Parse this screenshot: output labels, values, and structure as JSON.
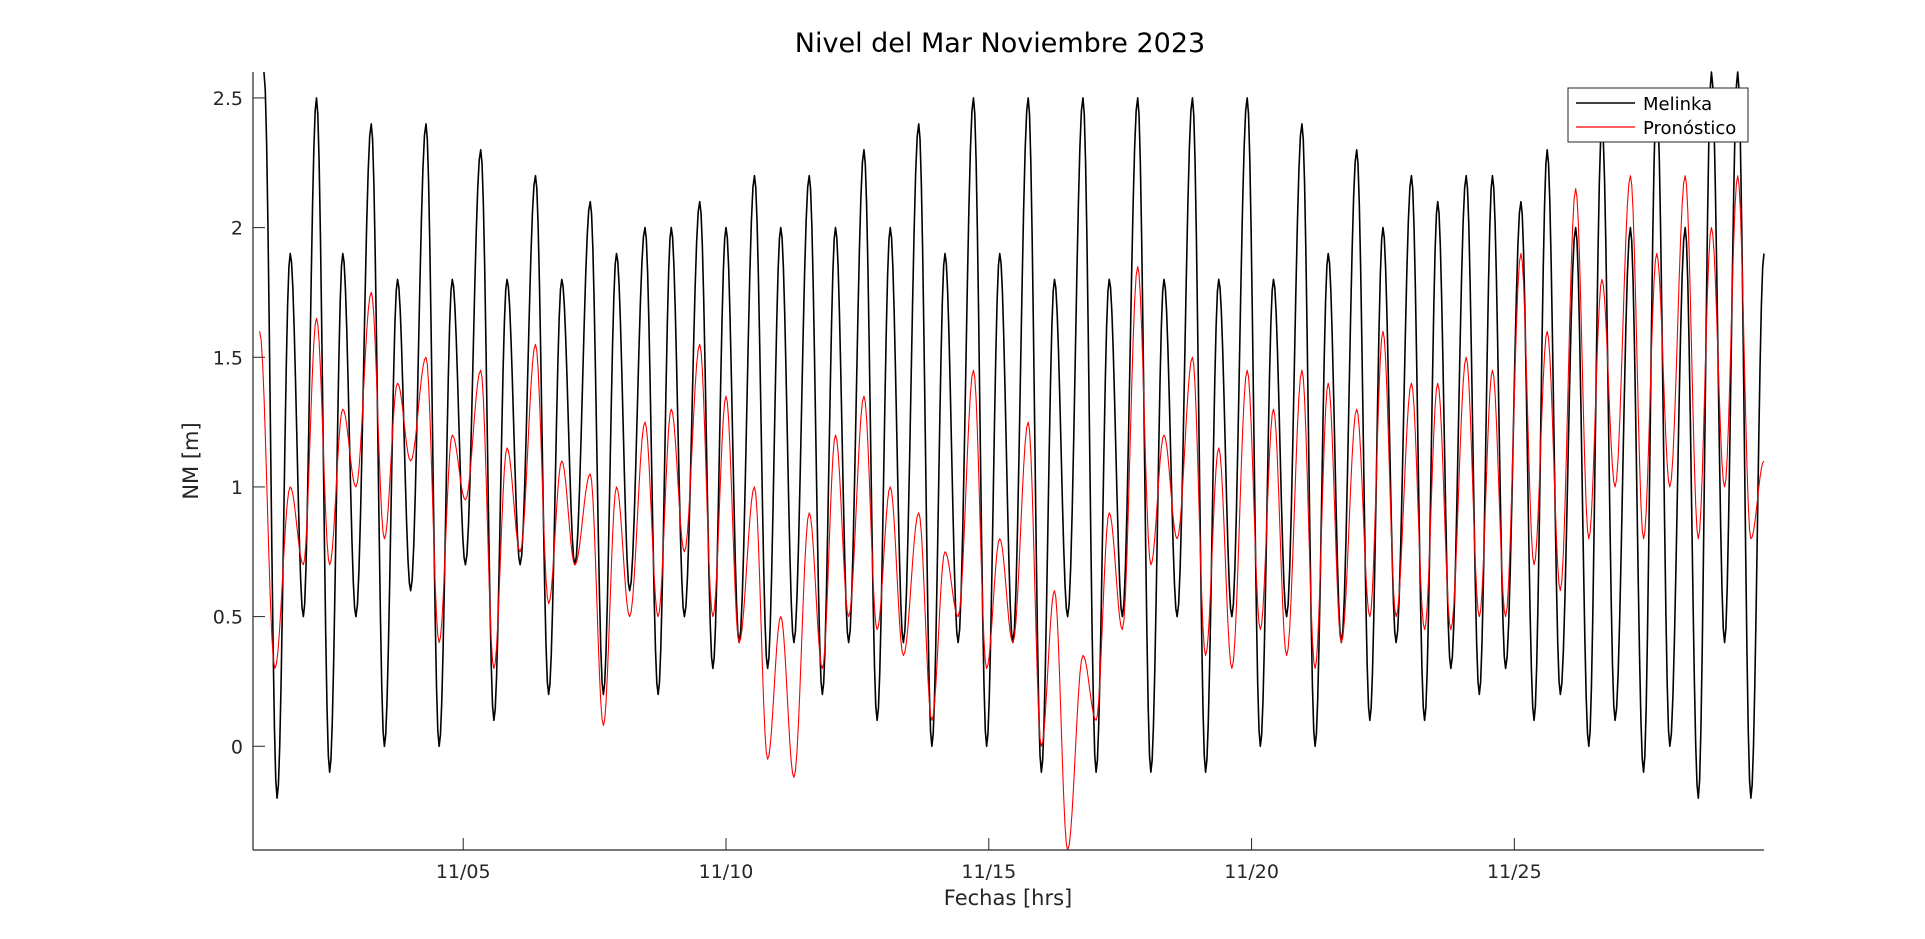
{
  "chart_data": {
    "type": "line",
    "title": "Nivel del Mar Noviembre 2023",
    "xlabel": "Fechas [hrs]",
    "ylabel": "NM [m]",
    "xlim": [
      "2023-11-01",
      "2023-11-29T18:00"
    ],
    "ylim": [
      -0.4,
      2.6
    ],
    "x_ticks": [
      {
        "date": "2023-11-05",
        "label": "11/05"
      },
      {
        "date": "2023-11-10",
        "label": "11/10"
      },
      {
        "date": "2023-11-15",
        "label": "11/15"
      },
      {
        "date": "2023-11-20",
        "label": "11/20"
      },
      {
        "date": "2023-11-25",
        "label": "11/25"
      }
    ],
    "y_ticks": [
      {
        "value": 0,
        "label": "0"
      },
      {
        "value": 0.5,
        "label": "0.5"
      },
      {
        "value": 1,
        "label": "1"
      },
      {
        "value": 1.5,
        "label": "1.5"
      },
      {
        "value": 2,
        "label": "2"
      },
      {
        "value": 2.5,
        "label": "2.5"
      }
    ],
    "grid": false,
    "legend_position": "top-right",
    "series": [
      {
        "name": "Melinka",
        "color": "#000000",
        "sampling": "hourly",
        "start": "2023-11-01T00:00",
        "semidiurnal_extrema": [
          [
            "2023-11-01T05:00",
            2.6
          ],
          [
            "2023-11-01T11:00",
            -0.2
          ],
          [
            "2023-11-01T17:00",
            1.9
          ],
          [
            "2023-11-01T23:00",
            0.5
          ],
          [
            "2023-11-02T05:00",
            2.5
          ],
          [
            "2023-11-02T11:00",
            -0.1
          ],
          [
            "2023-11-02T17:00",
            1.9
          ],
          [
            "2023-11-02T23:00",
            0.5
          ],
          [
            "2023-11-03T06:00",
            2.4
          ],
          [
            "2023-11-03T12:00",
            0.0
          ],
          [
            "2023-11-03T18:00",
            1.8
          ],
          [
            "2023-11-04T00:00",
            0.6
          ],
          [
            "2023-11-04T07:00",
            2.4
          ],
          [
            "2023-11-04T13:00",
            0.0
          ],
          [
            "2023-11-04T19:00",
            1.8
          ],
          [
            "2023-11-05T01:00",
            0.7
          ],
          [
            "2023-11-05T08:00",
            2.3
          ],
          [
            "2023-11-05T14:00",
            0.1
          ],
          [
            "2023-11-05T20:00",
            1.8
          ],
          [
            "2023-11-06T02:00",
            0.7
          ],
          [
            "2023-11-06T09:00",
            2.2
          ],
          [
            "2023-11-06T15:00",
            0.2
          ],
          [
            "2023-11-06T21:00",
            1.8
          ],
          [
            "2023-11-07T03:00",
            0.7
          ],
          [
            "2023-11-07T10:00",
            2.1
          ],
          [
            "2023-11-07T16:00",
            0.2
          ],
          [
            "2023-11-07T22:00",
            1.9
          ],
          [
            "2023-11-08T04:00",
            0.6
          ],
          [
            "2023-11-08T11:00",
            2.0
          ],
          [
            "2023-11-08T17:00",
            0.2
          ],
          [
            "2023-11-08T23:00",
            2.0
          ],
          [
            "2023-11-09T05:00",
            0.5
          ],
          [
            "2023-11-09T12:00",
            2.1
          ],
          [
            "2023-11-09T18:00",
            0.3
          ],
          [
            "2023-11-10T00:00",
            2.0
          ],
          [
            "2023-11-10T06:00",
            0.4
          ],
          [
            "2023-11-10T13:00",
            2.2
          ],
          [
            "2023-11-10T19:00",
            0.3
          ],
          [
            "2023-11-11T01:00",
            2.0
          ],
          [
            "2023-11-11T07:00",
            0.4
          ],
          [
            "2023-11-11T14:00",
            2.2
          ],
          [
            "2023-11-11T20:00",
            0.2
          ],
          [
            "2023-11-12T02:00",
            2.0
          ],
          [
            "2023-11-12T08:00",
            0.4
          ],
          [
            "2023-11-12T15:00",
            2.3
          ],
          [
            "2023-11-12T21:00",
            0.1
          ],
          [
            "2023-11-13T03:00",
            2.0
          ],
          [
            "2023-11-13T09:00",
            0.4
          ],
          [
            "2023-11-13T16:00",
            2.4
          ],
          [
            "2023-11-13T22:00",
            0.0
          ],
          [
            "2023-11-14T04:00",
            1.9
          ],
          [
            "2023-11-14T10:00",
            0.4
          ],
          [
            "2023-11-14T17:00",
            2.5
          ],
          [
            "2023-11-14T23:00",
            0.0
          ],
          [
            "2023-11-15T05:00",
            1.9
          ],
          [
            "2023-11-15T11:00",
            0.4
          ],
          [
            "2023-11-15T18:00",
            2.5
          ],
          [
            "2023-11-16T00:00",
            -0.1
          ],
          [
            "2023-11-16T06:00",
            1.8
          ],
          [
            "2023-11-16T12:00",
            0.5
          ],
          [
            "2023-11-16T19:00",
            2.5
          ],
          [
            "2023-11-17T01:00",
            -0.1
          ],
          [
            "2023-11-17T07:00",
            1.8
          ],
          [
            "2023-11-17T13:00",
            0.5
          ],
          [
            "2023-11-17T20:00",
            2.5
          ],
          [
            "2023-11-18T02:00",
            -0.1
          ],
          [
            "2023-11-18T08:00",
            1.8
          ],
          [
            "2023-11-18T14:00",
            0.5
          ],
          [
            "2023-11-18T21:00",
            2.5
          ],
          [
            "2023-11-19T03:00",
            -0.1
          ],
          [
            "2023-11-19T09:00",
            1.8
          ],
          [
            "2023-11-19T15:00",
            0.5
          ],
          [
            "2023-11-19T22:00",
            2.5
          ],
          [
            "2023-11-20T04:00",
            0.0
          ],
          [
            "2023-11-20T10:00",
            1.8
          ],
          [
            "2023-11-20T16:00",
            0.5
          ],
          [
            "2023-11-20T23:00",
            2.4
          ],
          [
            "2023-11-21T05:00",
            0.0
          ],
          [
            "2023-11-21T11:00",
            1.9
          ],
          [
            "2023-11-21T17:00",
            0.4
          ],
          [
            "2023-11-22T00:00",
            2.3
          ],
          [
            "2023-11-22T06:00",
            0.1
          ],
          [
            "2023-11-22T12:00",
            2.0
          ],
          [
            "2023-11-22T18:00",
            0.4
          ],
          [
            "2023-11-23T01:00",
            2.2
          ],
          [
            "2023-11-23T07:00",
            0.1
          ],
          [
            "2023-11-23T13:00",
            2.1
          ],
          [
            "2023-11-23T19:00",
            0.3
          ],
          [
            "2023-11-24T02:00",
            2.2
          ],
          [
            "2023-11-24T08:00",
            0.2
          ],
          [
            "2023-11-24T14:00",
            2.2
          ],
          [
            "2023-11-24T20:00",
            0.3
          ],
          [
            "2023-11-25T03:00",
            2.1
          ],
          [
            "2023-11-25T09:00",
            0.1
          ],
          [
            "2023-11-25T15:00",
            2.3
          ],
          [
            "2023-11-25T21:00",
            0.2
          ],
          [
            "2023-11-26T04:00",
            2.0
          ],
          [
            "2023-11-26T10:00",
            0.0
          ],
          [
            "2023-11-26T16:00",
            2.4
          ],
          [
            "2023-11-26T22:00",
            0.1
          ],
          [
            "2023-11-27T05:00",
            2.0
          ],
          [
            "2023-11-27T11:00",
            -0.1
          ],
          [
            "2023-11-27T17:00",
            2.5
          ],
          [
            "2023-11-27T23:00",
            0.0
          ],
          [
            "2023-11-28T06:00",
            2.0
          ],
          [
            "2023-11-28T12:00",
            -0.2
          ],
          [
            "2023-11-28T18:00",
            2.6
          ],
          [
            "2023-11-29T00:00",
            0.4
          ],
          [
            "2023-11-29T06:00",
            2.6
          ],
          [
            "2023-11-29T12:00",
            -0.2
          ],
          [
            "2023-11-29T18:00",
            1.9
          ]
        ]
      },
      {
        "name": "Pronóstico",
        "color": "#ff0000",
        "sampling": "hourly",
        "start": "2023-11-01T00:00",
        "semidiurnal_extrema": [
          [
            "2023-11-01T03:00",
            1.6
          ],
          [
            "2023-11-01T10:00",
            0.3
          ],
          [
            "2023-11-01T17:00",
            1.0
          ],
          [
            "2023-11-01T23:00",
            0.7
          ],
          [
            "2023-11-02T05:00",
            1.65
          ],
          [
            "2023-11-02T11:00",
            0.7
          ],
          [
            "2023-11-02T17:00",
            1.3
          ],
          [
            "2023-11-02T23:00",
            1.0
          ],
          [
            "2023-11-03T06:00",
            1.75
          ],
          [
            "2023-11-03T12:00",
            0.8
          ],
          [
            "2023-11-03T18:00",
            1.4
          ],
          [
            "2023-11-04T00:00",
            1.1
          ],
          [
            "2023-11-04T07:00",
            1.5
          ],
          [
            "2023-11-04T13:00",
            0.4
          ],
          [
            "2023-11-04T19:00",
            1.2
          ],
          [
            "2023-11-05T01:00",
            0.95
          ],
          [
            "2023-11-05T08:00",
            1.45
          ],
          [
            "2023-11-05T14:00",
            0.3
          ],
          [
            "2023-11-05T20:00",
            1.15
          ],
          [
            "2023-11-06T02:00",
            0.75
          ],
          [
            "2023-11-06T09:00",
            1.55
          ],
          [
            "2023-11-06T15:00",
            0.55
          ],
          [
            "2023-11-06T21:00",
            1.1
          ],
          [
            "2023-11-07T03:00",
            0.7
          ],
          [
            "2023-11-07T10:00",
            1.05
          ],
          [
            "2023-11-07T16:00",
            0.08
          ],
          [
            "2023-11-07T22:00",
            1.0
          ],
          [
            "2023-11-08T04:00",
            0.5
          ],
          [
            "2023-11-08T11:00",
            1.25
          ],
          [
            "2023-11-08T17:00",
            0.5
          ],
          [
            "2023-11-08T23:00",
            1.3
          ],
          [
            "2023-11-09T05:00",
            0.75
          ],
          [
            "2023-11-09T12:00",
            1.55
          ],
          [
            "2023-11-09T18:00",
            0.5
          ],
          [
            "2023-11-10T00:00",
            1.35
          ],
          [
            "2023-11-10T06:00",
            0.4
          ],
          [
            "2023-11-10T13:00",
            1.0
          ],
          [
            "2023-11-10T19:00",
            -0.05
          ],
          [
            "2023-11-11T01:00",
            0.5
          ],
          [
            "2023-11-11T07:00",
            -0.12
          ],
          [
            "2023-11-11T14:00",
            0.9
          ],
          [
            "2023-11-11T20:00",
            0.3
          ],
          [
            "2023-11-12T02:00",
            1.2
          ],
          [
            "2023-11-12T08:00",
            0.5
          ],
          [
            "2023-11-12T15:00",
            1.35
          ],
          [
            "2023-11-12T21:00",
            0.45
          ],
          [
            "2023-11-13T03:00",
            1.0
          ],
          [
            "2023-11-13T09:00",
            0.35
          ],
          [
            "2023-11-13T16:00",
            0.9
          ],
          [
            "2023-11-13T22:00",
            0.1
          ],
          [
            "2023-11-14T04:00",
            0.75
          ],
          [
            "2023-11-14T10:00",
            0.5
          ],
          [
            "2023-11-14T17:00",
            1.45
          ],
          [
            "2023-11-14T23:00",
            0.3
          ],
          [
            "2023-11-15T05:00",
            0.8
          ],
          [
            "2023-11-15T11:00",
            0.4
          ],
          [
            "2023-11-15T18:00",
            1.25
          ],
          [
            "2023-11-16T00:00",
            0.0
          ],
          [
            "2023-11-16T06:00",
            0.6
          ],
          [
            "2023-11-16T12:00",
            -0.4
          ],
          [
            "2023-11-16T19:00",
            0.35
          ],
          [
            "2023-11-17T01:00",
            0.1
          ],
          [
            "2023-11-17T07:00",
            0.9
          ],
          [
            "2023-11-17T13:00",
            0.45
          ],
          [
            "2023-11-17T20:00",
            1.85
          ],
          [
            "2023-11-18T02:00",
            0.7
          ],
          [
            "2023-11-18T08:00",
            1.2
          ],
          [
            "2023-11-18T14:00",
            0.8
          ],
          [
            "2023-11-18T21:00",
            1.5
          ],
          [
            "2023-11-19T03:00",
            0.35
          ],
          [
            "2023-11-19T09:00",
            1.15
          ],
          [
            "2023-11-19T15:00",
            0.3
          ],
          [
            "2023-11-19T22:00",
            1.45
          ],
          [
            "2023-11-20T04:00",
            0.45
          ],
          [
            "2023-11-20T10:00",
            1.3
          ],
          [
            "2023-11-20T16:00",
            0.35
          ],
          [
            "2023-11-20T23:00",
            1.45
          ],
          [
            "2023-11-21T05:00",
            0.3
          ],
          [
            "2023-11-21T11:00",
            1.4
          ],
          [
            "2023-11-21T17:00",
            0.4
          ],
          [
            "2023-11-22T00:00",
            1.3
          ],
          [
            "2023-11-22T06:00",
            0.5
          ],
          [
            "2023-11-22T12:00",
            1.6
          ],
          [
            "2023-11-22T18:00",
            0.5
          ],
          [
            "2023-11-23T01:00",
            1.4
          ],
          [
            "2023-11-23T07:00",
            0.45
          ],
          [
            "2023-11-23T13:00",
            1.4
          ],
          [
            "2023-11-23T19:00",
            0.45
          ],
          [
            "2023-11-24T02:00",
            1.5
          ],
          [
            "2023-11-24T08:00",
            0.5
          ],
          [
            "2023-11-24T14:00",
            1.45
          ],
          [
            "2023-11-24T20:00",
            0.5
          ],
          [
            "2023-11-25T03:00",
            1.9
          ],
          [
            "2023-11-25T09:00",
            0.7
          ],
          [
            "2023-11-25T15:00",
            1.6
          ],
          [
            "2023-11-25T21:00",
            0.6
          ],
          [
            "2023-11-26T04:00",
            2.15
          ],
          [
            "2023-11-26T10:00",
            0.8
          ],
          [
            "2023-11-26T16:00",
            1.8
          ],
          [
            "2023-11-26T22:00",
            1.0
          ],
          [
            "2023-11-27T05:00",
            2.2
          ],
          [
            "2023-11-27T11:00",
            0.8
          ],
          [
            "2023-11-27T17:00",
            1.9
          ],
          [
            "2023-11-27T23:00",
            1.0
          ],
          [
            "2023-11-28T06:00",
            2.2
          ],
          [
            "2023-11-28T12:00",
            0.8
          ],
          [
            "2023-11-28T18:00",
            2.0
          ],
          [
            "2023-11-29T00:00",
            1.0
          ],
          [
            "2023-11-29T06:00",
            2.2
          ],
          [
            "2023-11-29T12:00",
            0.8
          ],
          [
            "2023-11-29T18:00",
            1.1
          ]
        ]
      }
    ]
  }
}
